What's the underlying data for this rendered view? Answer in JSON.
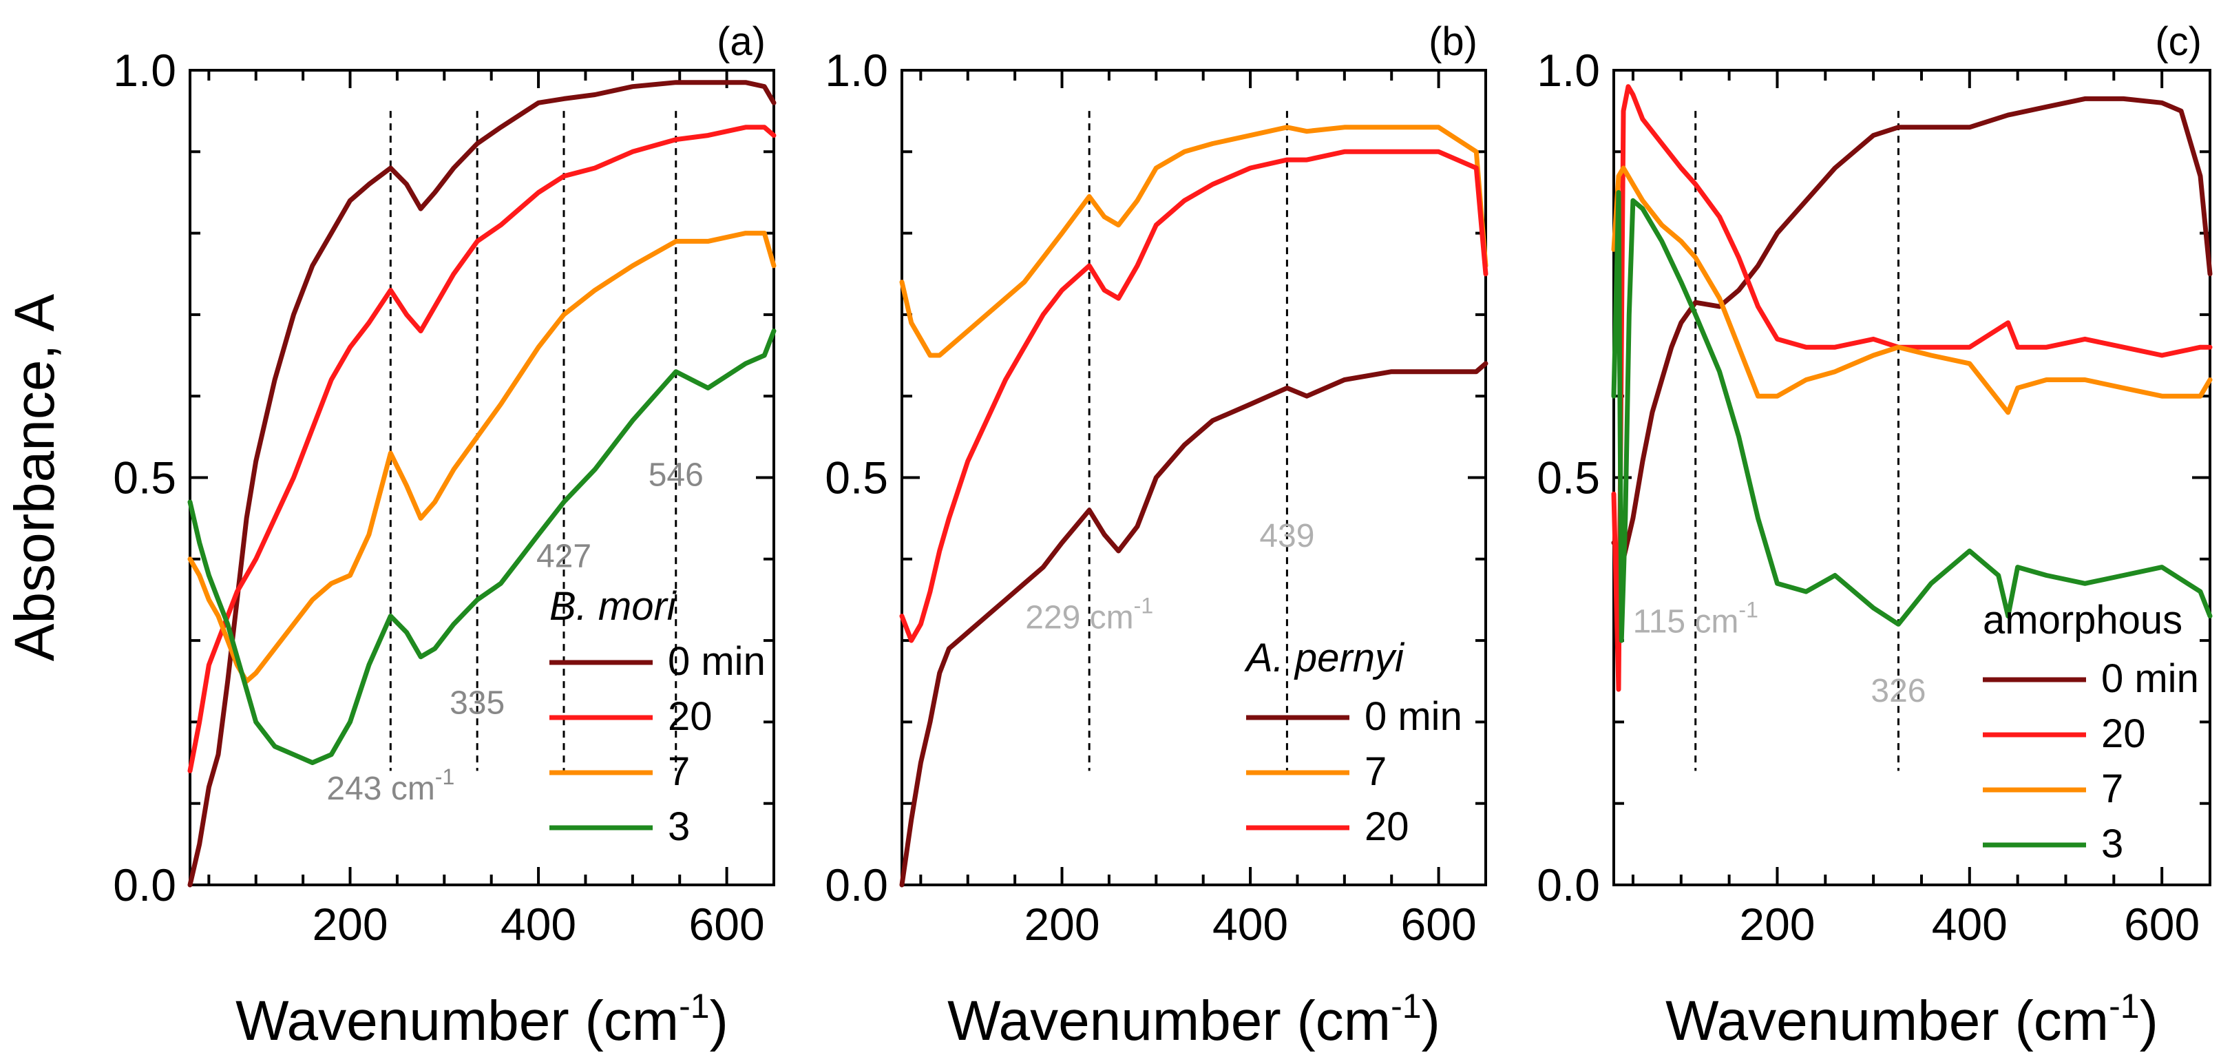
{
  "colors": {
    "dark_red": "#7b0d0d",
    "red": "#ff1a1a",
    "orange": "#ff8c00",
    "green": "#1f8a1f",
    "annot_gray_dark": "#888888",
    "annot_gray_light": "#b0b0b0"
  },
  "chart_data": [
    {
      "type": "line",
      "panel_label": "(a)",
      "xlabel": "Wavenumber (cm",
      "xlabel_sup": "-1",
      "xlabel_close": ")",
      "ylabel": "Absorbance, A",
      "xlim": [
        30,
        650
      ],
      "ylim": [
        0.0,
        1.0
      ],
      "xticks": [
        200,
        400,
        600
      ],
      "yticks": [
        0.0,
        0.5,
        1.0
      ],
      "ytick_labels": [
        "0.0",
        "0.5",
        "1.0"
      ],
      "legend_title": "B. mori",
      "markers": [
        243,
        335,
        427,
        546
      ],
      "annotations": [
        {
          "text": "243 cm",
          "sup": "-1",
          "x": 243,
          "y": 0.105,
          "tone": "dark"
        },
        {
          "text": "335",
          "x": 335,
          "y": 0.21,
          "tone": "dark"
        },
        {
          "text": "427",
          "x": 427,
          "y": 0.39,
          "tone": "dark"
        },
        {
          "text": "546",
          "x": 546,
          "y": 0.49,
          "tone": "dark"
        }
      ],
      "series": [
        {
          "name": "0 min",
          "color_key": "dark_red",
          "x": [
            30,
            40,
            50,
            60,
            70,
            80,
            90,
            100,
            120,
            140,
            160,
            180,
            200,
            220,
            243,
            260,
            275,
            290,
            310,
            335,
            360,
            400,
            427,
            460,
            500,
            546,
            580,
            620,
            640,
            650
          ],
          "y": [
            0.0,
            0.05,
            0.12,
            0.16,
            0.25,
            0.35,
            0.45,
            0.52,
            0.62,
            0.7,
            0.76,
            0.8,
            0.84,
            0.86,
            0.88,
            0.86,
            0.83,
            0.85,
            0.88,
            0.91,
            0.93,
            0.96,
            0.965,
            0.97,
            0.98,
            0.985,
            0.985,
            0.985,
            0.98,
            0.96
          ]
        },
        {
          "name": "20",
          "color_key": "red",
          "x": [
            30,
            40,
            50,
            60,
            70,
            80,
            90,
            100,
            120,
            140,
            160,
            180,
            200,
            220,
            243,
            260,
            275,
            290,
            310,
            335,
            360,
            400,
            427,
            460,
            500,
            546,
            580,
            620,
            640,
            650
          ],
          "y": [
            0.14,
            0.2,
            0.27,
            0.3,
            0.33,
            0.36,
            0.38,
            0.4,
            0.45,
            0.5,
            0.56,
            0.62,
            0.66,
            0.69,
            0.73,
            0.7,
            0.68,
            0.71,
            0.75,
            0.79,
            0.81,
            0.85,
            0.87,
            0.88,
            0.9,
            0.915,
            0.92,
            0.93,
            0.93,
            0.92
          ]
        },
        {
          "name": "7",
          "color_key": "orange",
          "x": [
            30,
            40,
            50,
            60,
            70,
            80,
            90,
            100,
            120,
            140,
            160,
            180,
            200,
            220,
            243,
            260,
            275,
            290,
            310,
            335,
            360,
            400,
            427,
            460,
            500,
            546,
            580,
            620,
            640,
            650
          ],
          "y": [
            0.4,
            0.38,
            0.35,
            0.33,
            0.3,
            0.27,
            0.25,
            0.26,
            0.29,
            0.32,
            0.35,
            0.37,
            0.38,
            0.43,
            0.53,
            0.49,
            0.45,
            0.47,
            0.51,
            0.55,
            0.59,
            0.66,
            0.7,
            0.73,
            0.76,
            0.79,
            0.79,
            0.8,
            0.8,
            0.76
          ]
        },
        {
          "name": "3",
          "color_key": "green",
          "x": [
            30,
            40,
            50,
            60,
            70,
            80,
            90,
            100,
            120,
            140,
            160,
            180,
            200,
            220,
            243,
            260,
            275,
            290,
            310,
            335,
            360,
            400,
            427,
            460,
            500,
            546,
            580,
            620,
            640,
            650
          ],
          "y": [
            0.47,
            0.42,
            0.38,
            0.35,
            0.32,
            0.28,
            0.24,
            0.2,
            0.17,
            0.16,
            0.15,
            0.16,
            0.2,
            0.27,
            0.33,
            0.31,
            0.28,
            0.29,
            0.32,
            0.35,
            0.37,
            0.43,
            0.47,
            0.51,
            0.57,
            0.63,
            0.61,
            0.64,
            0.65,
            0.68
          ]
        }
      ]
    },
    {
      "type": "line",
      "panel_label": "(b)",
      "xlabel": "Wavenumber (cm",
      "xlabel_sup": "-1",
      "xlabel_close": ")",
      "xlim": [
        30,
        650
      ],
      "ylim": [
        0.0,
        1.0
      ],
      "xticks": [
        200,
        400,
        600
      ],
      "yticks": [
        0.0,
        0.5,
        1.0
      ],
      "ytick_labels": [
        "0.0",
        "0.5",
        "1.0"
      ],
      "legend_title": "A. pernyi",
      "markers": [
        229,
        439
      ],
      "annotations": [
        {
          "text": "229 cm",
          "sup": "-1",
          "x": 229,
          "y": 0.315,
          "tone": "light"
        },
        {
          "text": "439",
          "x": 439,
          "y": 0.415,
          "tone": "light"
        }
      ],
      "series": [
        {
          "name": "0 min",
          "color_key": "dark_red",
          "x": [
            30,
            40,
            50,
            60,
            70,
            80,
            100,
            120,
            140,
            160,
            180,
            200,
            229,
            245,
            260,
            280,
            300,
            330,
            360,
            400,
            439,
            460,
            500,
            550,
            600,
            640,
            650
          ],
          "y": [
            0.0,
            0.08,
            0.15,
            0.2,
            0.26,
            0.29,
            0.31,
            0.33,
            0.35,
            0.37,
            0.39,
            0.42,
            0.46,
            0.43,
            0.41,
            0.44,
            0.5,
            0.54,
            0.57,
            0.59,
            0.61,
            0.6,
            0.62,
            0.63,
            0.63,
            0.63,
            0.64
          ]
        },
        {
          "name": "7",
          "color_key": "orange",
          "x": [
            30,
            40,
            50,
            60,
            70,
            80,
            100,
            120,
            140,
            160,
            180,
            200,
            229,
            245,
            260,
            280,
            300,
            330,
            360,
            400,
            439,
            460,
            500,
            550,
            600,
            640,
            650
          ],
          "y": [
            0.74,
            0.69,
            0.67,
            0.65,
            0.65,
            0.66,
            0.68,
            0.7,
            0.72,
            0.74,
            0.77,
            0.8,
            0.845,
            0.82,
            0.81,
            0.84,
            0.88,
            0.9,
            0.91,
            0.92,
            0.93,
            0.925,
            0.93,
            0.93,
            0.93,
            0.9,
            0.76
          ]
        },
        {
          "name": "20",
          "color_key": "red",
          "x": [
            30,
            40,
            50,
            60,
            70,
            80,
            100,
            120,
            140,
            160,
            180,
            200,
            229,
            245,
            260,
            280,
            300,
            330,
            360,
            400,
            439,
            460,
            500,
            550,
            600,
            640,
            650
          ],
          "y": [
            0.33,
            0.3,
            0.32,
            0.36,
            0.41,
            0.45,
            0.52,
            0.57,
            0.62,
            0.66,
            0.7,
            0.73,
            0.76,
            0.73,
            0.72,
            0.76,
            0.81,
            0.84,
            0.86,
            0.88,
            0.89,
            0.89,
            0.9,
            0.9,
            0.9,
            0.88,
            0.75
          ]
        }
      ]
    },
    {
      "type": "line",
      "panel_label": "(c)",
      "xlabel": "Wavenumber (cm",
      "xlabel_sup": "-1",
      "xlabel_close": ")",
      "xlim": [
        30,
        650
      ],
      "ylim": [
        0.0,
        1.0
      ],
      "xticks": [
        200,
        400,
        600
      ],
      "yticks": [
        0.0,
        0.5,
        1.0
      ],
      "ytick_labels": [
        "0.0",
        "0.5",
        "1.0"
      ],
      "legend_title": "amorphous",
      "markers": [
        115,
        326
      ],
      "annotations": [
        {
          "text": "115 cm",
          "sup": "-1",
          "x": 115,
          "y": 0.31,
          "tone": "light"
        },
        {
          "text": "326",
          "x": 326,
          "y": 0.225,
          "tone": "light"
        }
      ],
      "series": [
        {
          "name": "0 min",
          "color_key": "dark_red",
          "x": [
            30,
            40,
            50,
            60,
            70,
            80,
            90,
            100,
            115,
            140,
            160,
            180,
            200,
            230,
            260,
            300,
            326,
            360,
            400,
            440,
            480,
            520,
            560,
            600,
            620,
            640,
            650
          ],
          "y": [
            0.42,
            0.4,
            0.45,
            0.52,
            0.58,
            0.62,
            0.66,
            0.69,
            0.715,
            0.71,
            0.73,
            0.76,
            0.8,
            0.84,
            0.88,
            0.92,
            0.93,
            0.93,
            0.93,
            0.945,
            0.955,
            0.965,
            0.965,
            0.96,
            0.95,
            0.87,
            0.75
          ]
        },
        {
          "name": "20",
          "color_key": "red",
          "x": [
            30,
            35,
            40,
            45,
            50,
            60,
            80,
            100,
            115,
            140,
            160,
            180,
            200,
            230,
            260,
            300,
            326,
            360,
            400,
            440,
            450,
            480,
            520,
            560,
            600,
            640,
            650
          ],
          "y": [
            0.48,
            0.24,
            0.95,
            0.98,
            0.97,
            0.94,
            0.91,
            0.88,
            0.86,
            0.82,
            0.77,
            0.71,
            0.67,
            0.66,
            0.66,
            0.67,
            0.66,
            0.66,
            0.66,
            0.69,
            0.66,
            0.66,
            0.67,
            0.66,
            0.65,
            0.66,
            0.66
          ]
        },
        {
          "name": "7",
          "color_key": "orange",
          "x": [
            30,
            35,
            40,
            45,
            50,
            60,
            80,
            100,
            115,
            140,
            160,
            180,
            200,
            230,
            260,
            300,
            326,
            360,
            400,
            440,
            450,
            480,
            520,
            560,
            600,
            640,
            650
          ],
          "y": [
            0.78,
            0.87,
            0.88,
            0.87,
            0.86,
            0.84,
            0.81,
            0.79,
            0.77,
            0.72,
            0.66,
            0.6,
            0.6,
            0.62,
            0.63,
            0.65,
            0.66,
            0.65,
            0.64,
            0.58,
            0.61,
            0.62,
            0.62,
            0.61,
            0.6,
            0.6,
            0.62
          ]
        },
        {
          "name": "3",
          "color_key": "green",
          "x": [
            30,
            35,
            38,
            42,
            46,
            50,
            60,
            80,
            100,
            115,
            140,
            160,
            180,
            200,
            230,
            260,
            300,
            326,
            360,
            400,
            430,
            440,
            450,
            480,
            520,
            560,
            600,
            640,
            650
          ],
          "y": [
            0.6,
            0.85,
            0.3,
            0.45,
            0.7,
            0.84,
            0.83,
            0.79,
            0.74,
            0.7,
            0.63,
            0.55,
            0.45,
            0.37,
            0.36,
            0.38,
            0.34,
            0.32,
            0.37,
            0.41,
            0.38,
            0.33,
            0.39,
            0.38,
            0.37,
            0.38,
            0.39,
            0.36,
            0.33
          ]
        }
      ]
    }
  ]
}
